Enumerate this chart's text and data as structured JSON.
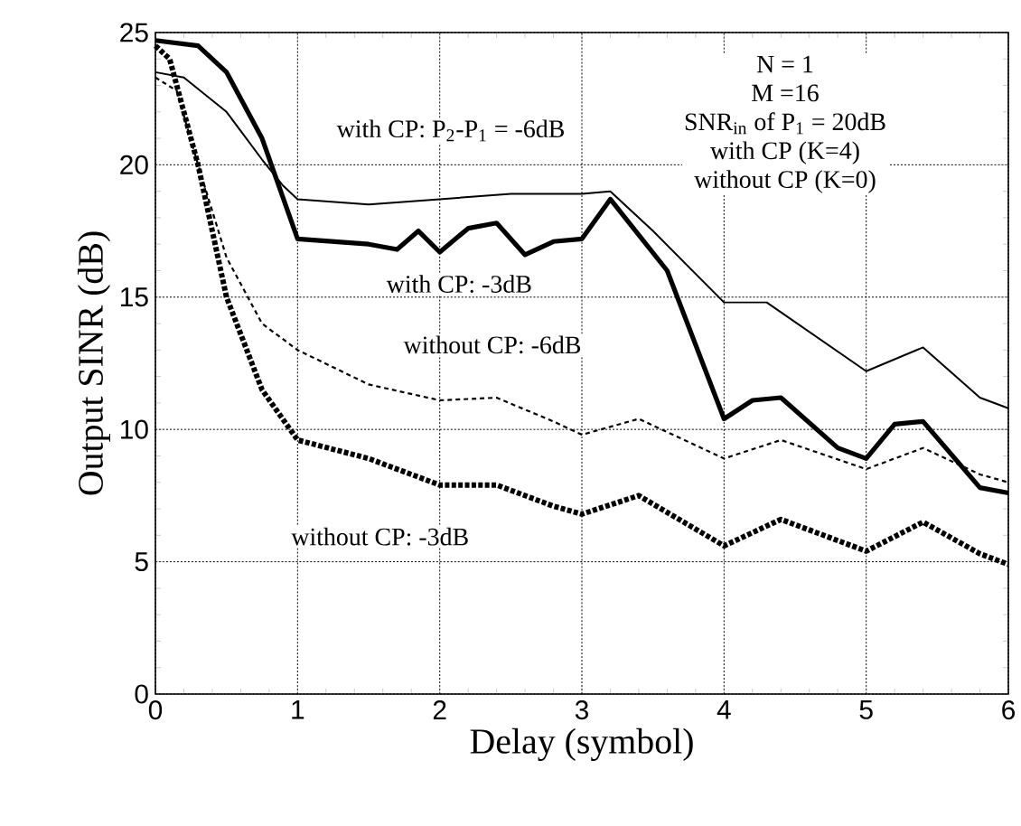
{
  "chart_data": {
    "type": "line",
    "xlabel": "Delay  (symbol)",
    "ylabel": "Output SINR  (dB)",
    "xlim": [
      0,
      6
    ],
    "ylim": [
      0,
      25
    ],
    "xticks": [
      0,
      1,
      2,
      3,
      4,
      5,
      6
    ],
    "yticks": [
      0,
      5,
      10,
      15,
      20,
      25
    ],
    "grid": true,
    "annotations": [
      "N = 1",
      "M =16",
      "SNR$_{in}$ of P$_{1}$ = 20dB",
      "with CP (K=4)",
      "without CP (K=0)"
    ],
    "series": [
      {
        "name": "with CP:  P$_{2}$-P$_{1}$ = -6dB",
        "color": "#000000",
        "line_style": "solid",
        "x": [
          0,
          0.2,
          0.5,
          0.75,
          0.9,
          1,
          1.5,
          2,
          2.5,
          3,
          3.2,
          3.5,
          4,
          4.3,
          5,
          5.4,
          5.8,
          6
        ],
        "values": [
          23.5,
          23.3,
          22,
          20.2,
          19.2,
          18.7,
          18.5,
          18.7,
          18.9,
          18.9,
          19,
          17.5,
          14.8,
          14.8,
          12.2,
          13.1,
          11.2,
          10.8
        ]
      },
      {
        "name": "with CP:  -3dB",
        "color": "#000000",
        "line_style": "solid",
        "x": [
          0,
          0.3,
          0.5,
          0.75,
          1,
          1.5,
          1.7,
          1.85,
          2,
          2.2,
          2.4,
          2.6,
          2.8,
          3,
          3.2,
          3.6,
          4,
          4.2,
          4.4,
          4.8,
          5,
          5.2,
          5.4,
          5.8,
          6
        ],
        "values": [
          24.7,
          24.5,
          23.5,
          21,
          17.2,
          17,
          16.8,
          17.5,
          16.7,
          17.6,
          17.8,
          16.6,
          17.1,
          17.2,
          18.7,
          16,
          10.4,
          11.1,
          11.2,
          9.3,
          8.9,
          10.2,
          10.3,
          7.8,
          7.6
        ]
      },
      {
        "name": "without CP:  -6dB",
        "color": "#000000",
        "line_style": "dashed",
        "x": [
          0,
          0.15,
          0.3,
          0.5,
          0.75,
          1,
          1.5,
          2,
          2.4,
          2.8,
          3,
          3.4,
          4,
          4.4,
          5,
          5.4,
          5.8,
          6
        ],
        "values": [
          23.3,
          22.8,
          20,
          16.5,
          14,
          13,
          11.7,
          11.1,
          11.2,
          10.3,
          9.8,
          10.4,
          8.9,
          9.6,
          8.5,
          9.3,
          8.3,
          8.0
        ]
      },
      {
        "name": "without CP:  -3dB",
        "color": "#000000",
        "line_style": "dotted",
        "x": [
          0,
          0.1,
          0.3,
          0.5,
          0.75,
          1,
          1.5,
          2,
          2.4,
          2.8,
          3,
          3.4,
          4,
          4.4,
          5,
          5.4,
          5.8,
          6
        ],
        "values": [
          24.5,
          24,
          20,
          15,
          11.5,
          9.6,
          8.9,
          7.9,
          7.9,
          7.1,
          6.8,
          7.5,
          5.6,
          6.6,
          5.4,
          6.5,
          5.3,
          4.9
        ]
      }
    ]
  }
}
